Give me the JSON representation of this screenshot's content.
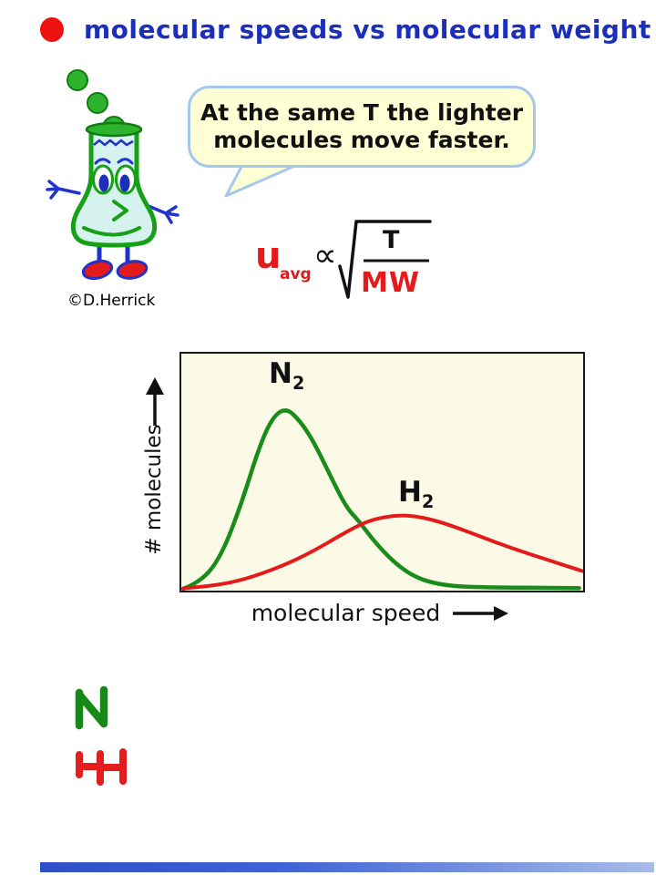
{
  "title": {
    "text": "molecular speeds vs molecular weight",
    "color": "#1c2fbb",
    "bullet_color": "#ee1111"
  },
  "mascot": {
    "credit_text": "©D.Herrick",
    "body_fill": "#d6f2ee",
    "outline_green": "#17a017",
    "bubble_green": "#2db32d",
    "detail_blue": "#2233cc",
    "pupil_blue": "#1c2fbb",
    "shoe_red": "#e31b1b"
  },
  "speech_bubble": {
    "lines": [
      "At the same T the lighter",
      "molecules move faster."
    ],
    "fill": "#ffffd6",
    "border_color": "#a5c8ea",
    "text_color": "#111111"
  },
  "formula": {
    "u": "u",
    "u_sub": "avg",
    "proportional": "∝",
    "numerator": "T",
    "denominator": "MW",
    "red": "#e31b1b",
    "black": "#111111"
  },
  "chart_data": {
    "type": "line",
    "title": "",
    "xlabel": "molecular speed",
    "ylabel": "# molecules",
    "axes_note": "no numeric ticks; arrows on both axes indicate increasing direction",
    "plot_bg": "#fbfae6",
    "grid": false,
    "legend_position": "labels placed next to curve peaks",
    "series": [
      {
        "name": "N2",
        "label_main": "N",
        "label_sub": "2",
        "color": "#1a8c1a",
        "stroke_width": 4.5,
        "points_norm": [
          [
            0.005,
            0.0
          ],
          [
            0.05,
            0.03
          ],
          [
            0.1,
            0.14
          ],
          [
            0.15,
            0.36
          ],
          [
            0.19,
            0.58
          ],
          [
            0.225,
            0.72
          ],
          [
            0.26,
            0.765
          ],
          [
            0.295,
            0.71
          ],
          [
            0.33,
            0.62
          ],
          [
            0.37,
            0.48
          ],
          [
            0.41,
            0.345
          ],
          [
            0.44,
            0.29
          ],
          [
            0.48,
            0.2
          ],
          [
            0.53,
            0.11
          ],
          [
            0.58,
            0.05
          ],
          [
            0.64,
            0.018
          ],
          [
            0.72,
            0.006
          ],
          [
            0.99,
            0.003
          ]
        ]
      },
      {
        "name": "H2",
        "label_main": "H",
        "label_sub": "2",
        "color": "#e31b1b",
        "stroke_width": 4,
        "points_norm": [
          [
            0.005,
            0.002
          ],
          [
            0.08,
            0.012
          ],
          [
            0.16,
            0.04
          ],
          [
            0.25,
            0.095
          ],
          [
            0.33,
            0.16
          ],
          [
            0.4,
            0.23
          ],
          [
            0.46,
            0.285
          ],
          [
            0.52,
            0.308
          ],
          [
            0.57,
            0.31
          ],
          [
            0.63,
            0.29
          ],
          [
            0.7,
            0.25
          ],
          [
            0.78,
            0.197
          ],
          [
            0.86,
            0.15
          ],
          [
            0.93,
            0.112
          ],
          [
            0.998,
            0.075
          ]
        ]
      }
    ]
  },
  "annotations": {
    "n_letter": "N",
    "h_letter": "H",
    "n_color": "#168a16",
    "h_color": "#e41e1e"
  },
  "footer_bar": {
    "from": "#2e4fc9",
    "mid": "#3f63d6",
    "to": "#a8bce8"
  }
}
